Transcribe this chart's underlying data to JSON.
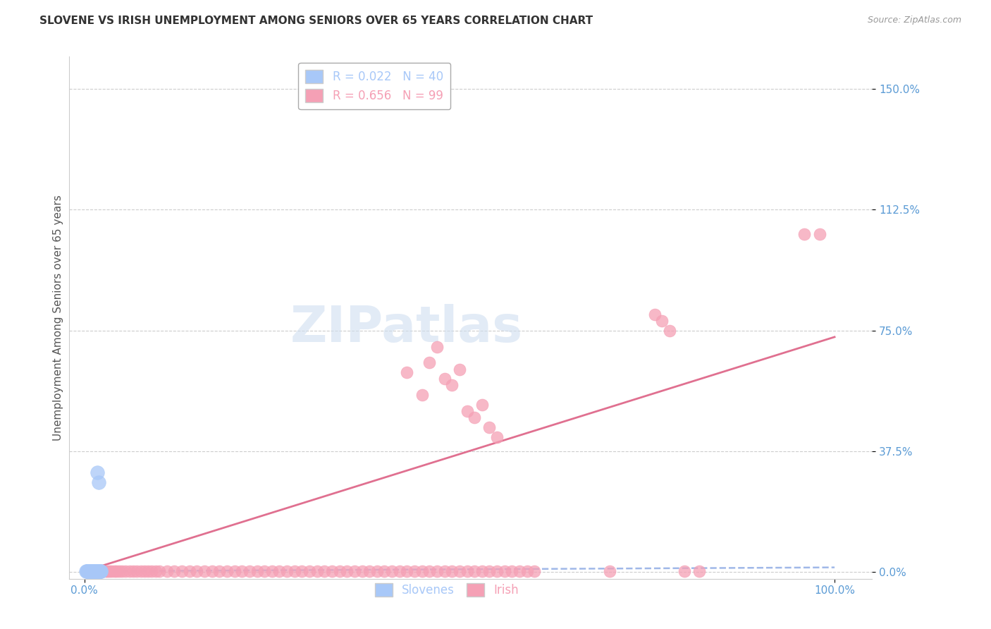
{
  "title": "SLOVENE VS IRISH UNEMPLOYMENT AMONG SENIORS OVER 65 YEARS CORRELATION CHART",
  "source": "Source: ZipAtlas.com",
  "ylabel_label": "Unemployment Among Seniors over 65 years",
  "ytick_values": [
    0.0,
    0.375,
    0.75,
    1.125,
    1.5
  ],
  "ytick_labels": [
    "0.0%",
    "37.5%",
    "75.0%",
    "112.5%",
    "150.0%"
  ],
  "xtick_values": [
    0.0,
    1.0
  ],
  "xtick_labels": [
    "0.0%",
    "100.0%"
  ],
  "xlim": [
    -0.02,
    1.05
  ],
  "ylim": [
    -0.02,
    1.6
  ],
  "slovene_R": "0.022",
  "slovene_N": "40",
  "irish_R": "0.656",
  "irish_N": "99",
  "slovene_color": "#a8c8f8",
  "irish_color": "#f5a0b5",
  "trend_slovene_color": "#a0b8e8",
  "trend_irish_color": "#e07090",
  "slovene_x": [
    0.002,
    0.004,
    0.005,
    0.006,
    0.007,
    0.008,
    0.009,
    0.01,
    0.011,
    0.012,
    0.013,
    0.014,
    0.015,
    0.016,
    0.017,
    0.018,
    0.019,
    0.02,
    0.021,
    0.022,
    0.003,
    0.005,
    0.007,
    0.009,
    0.011,
    0.013,
    0.015,
    0.017,
    0.019,
    0.021,
    0.004,
    0.006,
    0.008,
    0.01,
    0.012,
    0.014,
    0.016,
    0.018,
    0.02,
    0.022
  ],
  "slovene_y": [
    0.003,
    0.003,
    0.003,
    0.003,
    0.003,
    0.003,
    0.003,
    0.003,
    0.003,
    0.003,
    0.003,
    0.003,
    0.003,
    0.003,
    0.003,
    0.003,
    0.003,
    0.003,
    0.003,
    0.003,
    0.003,
    0.003,
    0.003,
    0.003,
    0.003,
    0.003,
    0.003,
    0.31,
    0.28,
    0.003,
    0.003,
    0.003,
    0.003,
    0.003,
    0.003,
    0.003,
    0.003,
    0.003,
    0.003,
    0.003
  ],
  "irish_x": [
    0.003,
    0.005,
    0.007,
    0.008,
    0.01,
    0.012,
    0.015,
    0.018,
    0.02,
    0.022,
    0.025,
    0.028,
    0.03,
    0.033,
    0.036,
    0.04,
    0.043,
    0.046,
    0.05,
    0.055,
    0.06,
    0.065,
    0.07,
    0.075,
    0.08,
    0.085,
    0.09,
    0.095,
    0.1,
    0.11,
    0.12,
    0.13,
    0.14,
    0.15,
    0.16,
    0.17,
    0.18,
    0.19,
    0.2,
    0.21,
    0.22,
    0.23,
    0.24,
    0.25,
    0.26,
    0.27,
    0.28,
    0.29,
    0.3,
    0.31,
    0.32,
    0.33,
    0.34,
    0.35,
    0.36,
    0.37,
    0.38,
    0.39,
    0.4,
    0.41,
    0.42,
    0.43,
    0.44,
    0.45,
    0.46,
    0.47,
    0.48,
    0.49,
    0.5,
    0.51,
    0.52,
    0.53,
    0.54,
    0.55,
    0.56,
    0.57,
    0.58,
    0.59,
    0.6,
    0.7,
    0.8,
    0.82,
    0.96,
    0.98,
    0.43,
    0.45,
    0.46,
    0.47,
    0.48,
    0.49,
    0.5,
    0.51,
    0.52,
    0.53,
    0.54,
    0.55,
    0.76,
    0.77,
    0.78
  ],
  "irish_y": [
    0.003,
    0.003,
    0.003,
    0.003,
    0.003,
    0.003,
    0.003,
    0.003,
    0.003,
    0.003,
    0.003,
    0.003,
    0.003,
    0.003,
    0.003,
    0.003,
    0.003,
    0.003,
    0.003,
    0.003,
    0.003,
    0.003,
    0.003,
    0.003,
    0.003,
    0.003,
    0.003,
    0.003,
    0.003,
    0.003,
    0.003,
    0.003,
    0.003,
    0.003,
    0.003,
    0.003,
    0.003,
    0.003,
    0.003,
    0.003,
    0.003,
    0.003,
    0.003,
    0.003,
    0.003,
    0.003,
    0.003,
    0.003,
    0.003,
    0.003,
    0.003,
    0.003,
    0.003,
    0.003,
    0.003,
    0.003,
    0.003,
    0.003,
    0.003,
    0.003,
    0.003,
    0.003,
    0.003,
    0.003,
    0.003,
    0.003,
    0.003,
    0.003,
    0.003,
    0.003,
    0.003,
    0.003,
    0.003,
    0.003,
    0.003,
    0.003,
    0.003,
    0.003,
    0.003,
    0.003,
    0.003,
    0.003,
    1.05,
    1.05,
    0.62,
    0.55,
    0.65,
    0.7,
    0.6,
    0.58,
    0.63,
    0.5,
    0.48,
    0.52,
    0.45,
    0.42,
    0.8,
    0.78,
    0.75
  ],
  "slovene_trend_x": [
    0.0,
    1.0
  ],
  "slovene_trend_y": [
    0.003,
    0.015
  ],
  "irish_trend_x": [
    0.0,
    1.0
  ],
  "irish_trend_y": [
    0.003,
    0.73
  ],
  "watermark_text": "ZIPatlas",
  "watermark_color": "#d0dff0",
  "title_fontsize": 11,
  "source_fontsize": 9,
  "tick_fontsize": 11,
  "ylabel_fontsize": 11,
  "legend_fontsize": 12,
  "tick_color": "#5b9bd5",
  "title_color": "#333333",
  "ylabel_color": "#555555",
  "grid_color": "#cccccc",
  "legend_edge_color": "#aaaaaa"
}
